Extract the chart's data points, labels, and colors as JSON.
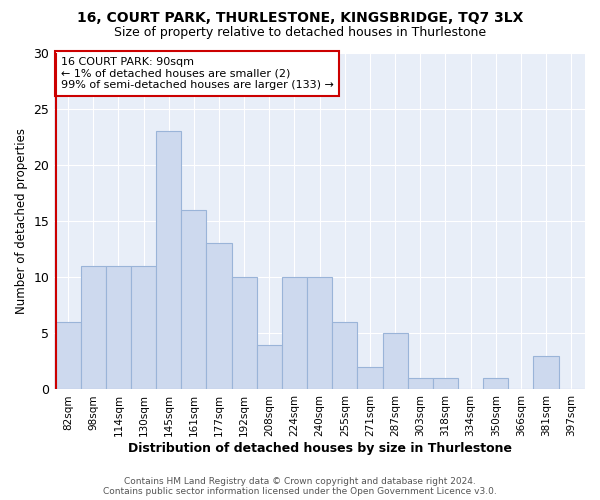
{
  "title1": "16, COURT PARK, THURLESTONE, KINGSBRIDGE, TQ7 3LX",
  "title2": "Size of property relative to detached houses in Thurlestone",
  "xlabel": "Distribution of detached houses by size in Thurlestone",
  "ylabel": "Number of detached properties",
  "categories": [
    "82sqm",
    "98sqm",
    "114sqm",
    "130sqm",
    "145sqm",
    "161sqm",
    "177sqm",
    "192sqm",
    "208sqm",
    "224sqm",
    "240sqm",
    "255sqm",
    "271sqm",
    "287sqm",
    "303sqm",
    "318sqm",
    "334sqm",
    "350sqm",
    "366sqm",
    "381sqm",
    "397sqm"
  ],
  "values": [
    6,
    11,
    11,
    11,
    23,
    16,
    13,
    10,
    4,
    10,
    10,
    6,
    2,
    5,
    1,
    1,
    0,
    1,
    0,
    3,
    0
  ],
  "bar_color": "#cdd9ee",
  "bar_edge_color": "#9ab4d8",
  "highlight_color": "#cc0000",
  "annotation_text": "16 COURT PARK: 90sqm\n← 1% of detached houses are smaller (2)\n99% of semi-detached houses are larger (133) →",
  "ylim": [
    0,
    30
  ],
  "yticks": [
    0,
    5,
    10,
    15,
    20,
    25,
    30
  ],
  "footer": "Contains HM Land Registry data © Crown copyright and database right 2024.\nContains public sector information licensed under the Open Government Licence v3.0.",
  "fig_bg_color": "#ffffff",
  "plot_bg_color": "#e8eef8",
  "grid_color": "#ffffff"
}
